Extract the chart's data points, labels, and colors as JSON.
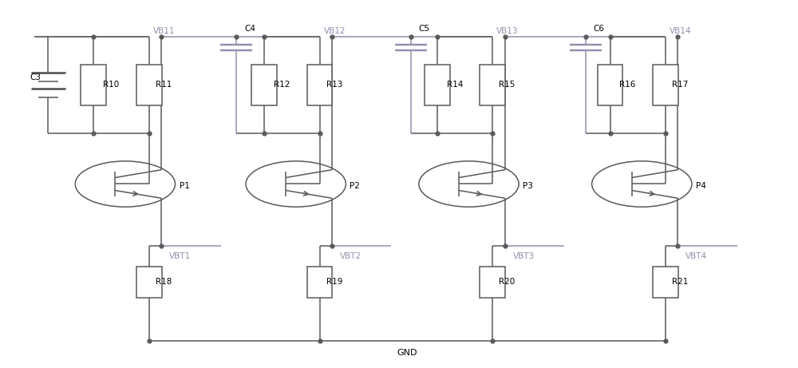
{
  "bg_color": "#ffffff",
  "line_color": "#5a5a5a",
  "purple_color": "#9090b0",
  "fig_width": 10.0,
  "fig_height": 4.61,
  "gnd_label": "GND",
  "cols": [
    {
      "vb": "VB11",
      "vbt": "VBT1",
      "cap": "C3",
      "rl": "R10",
      "rr": "R11",
      "p": "P1",
      "rb": "R18",
      "is_batt": true,
      "xL": 0.04,
      "xRL": 0.115,
      "xRR": 0.185,
      "xTc": 0.155,
      "xRb": 0.185
    },
    {
      "vb": "VB12",
      "vbt": "VBT2",
      "cap": "C4",
      "rl": "R12",
      "rr": "R13",
      "p": "P2",
      "rb": "R19",
      "is_batt": false,
      "xL": 0.295,
      "xRL": 0.33,
      "xRR": 0.4,
      "xTc": 0.37,
      "xRb": 0.4
    },
    {
      "vb": "VB13",
      "vbt": "VBT3",
      "cap": "C5",
      "rl": "R14",
      "rr": "R15",
      "p": "P3",
      "rb": "R20",
      "is_batt": false,
      "xL": 0.515,
      "xRL": 0.548,
      "xRR": 0.618,
      "xTc": 0.588,
      "xRb": 0.618
    },
    {
      "vb": "VB14",
      "vbt": "VBT4",
      "cap": "C6",
      "rl": "R16",
      "rr": "R17",
      "p": "P4",
      "rb": "R21",
      "is_batt": false,
      "xL": 0.735,
      "xRL": 0.766,
      "xRR": 0.836,
      "xTc": 0.806,
      "xRb": 0.836
    }
  ]
}
